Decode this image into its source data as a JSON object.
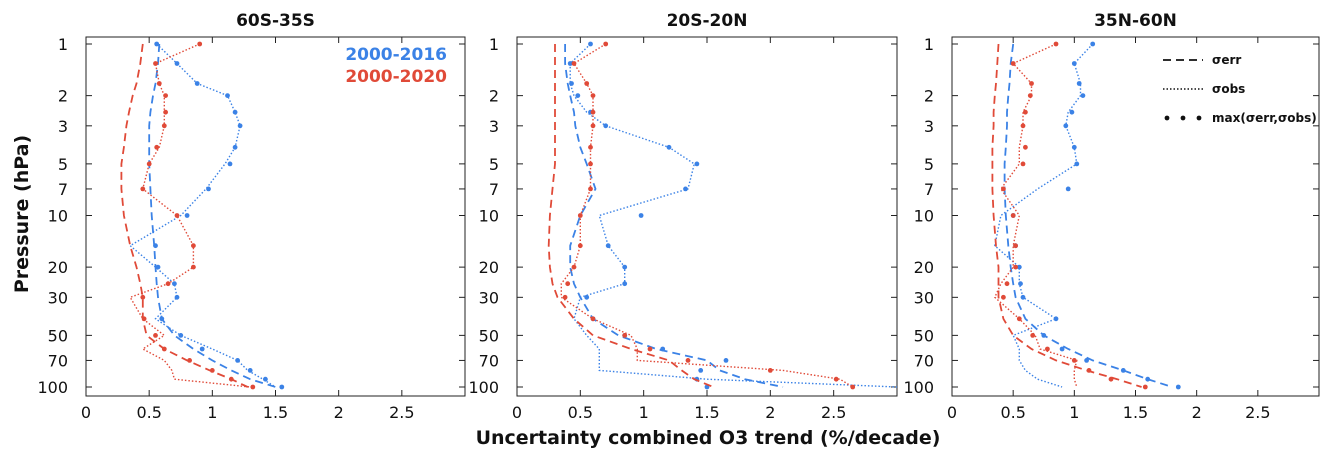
{
  "figure": {
    "xlabel": "Uncertainty combined O3 trend (%/decade)",
    "ylabel": "Pressure (hPa)",
    "legend_color": [
      {
        "label": "2000-2016",
        "color": "#3b82e6"
      },
      {
        "label": "2000-2020",
        "color": "#e04a38"
      }
    ],
    "legend_style": [
      {
        "label": "σerr",
        "style": "dashed"
      },
      {
        "label": "σobs",
        "style": "dotted"
      },
      {
        "label": "max(σerr,σobs)",
        "style": "markers"
      }
    ]
  },
  "chart_data": [
    {
      "type": "line",
      "title": "60S-35S",
      "xscale": "linear",
      "yscale": "log",
      "y_reversed": true,
      "xlim": [
        0,
        3
      ],
      "ylim": [
        100,
        1
      ],
      "xticks": [
        "0",
        "0.5",
        "1",
        "1.5",
        "2",
        "2.5"
      ],
      "yticks": [
        "1",
        "2",
        "3",
        "5",
        "7",
        "10",
        "20",
        "30",
        "50",
        "70",
        "100"
      ],
      "pressure": [
        1,
        1.3,
        1.7,
        2,
        2.5,
        3,
        4,
        5,
        7,
        10,
        15,
        20,
        25,
        30,
        40,
        50,
        60,
        70,
        80,
        90,
        100
      ],
      "series": [
        {
          "period": "2000-2016",
          "kind": "err",
          "color": "#3b82e6",
          "x": [
            0.58,
            0.57,
            0.55,
            0.53,
            0.51,
            0.5,
            0.5,
            0.5,
            0.51,
            0.52,
            0.54,
            0.55,
            0.56,
            0.57,
            0.6,
            0.7,
            0.85,
            1.0,
            1.15,
            1.3,
            1.5
          ]
        },
        {
          "period": "2000-2016",
          "kind": "obs",
          "color": "#3b82e6",
          "x": [
            0.56,
            0.72,
            0.88,
            1.12,
            1.18,
            1.22,
            1.18,
            1.1,
            0.95,
            0.75,
            0.35,
            0.55,
            0.7,
            0.72,
            0.55,
            0.75,
            1.0,
            1.2,
            1.28,
            1.4,
            1.5
          ]
        },
        {
          "period": "2000-2016",
          "kind": "max",
          "color": "#3b82e6",
          "x": [
            0.56,
            0.72,
            0.88,
            1.12,
            1.18,
            1.22,
            1.18,
            1.14,
            0.97,
            0.8,
            0.55,
            0.57,
            0.7,
            0.72,
            0.6,
            0.75,
            0.92,
            1.2,
            1.3,
            1.42,
            1.55
          ]
        },
        {
          "period": "2000-2020",
          "kind": "err",
          "color": "#e04a38",
          "x": [
            0.45,
            0.43,
            0.4,
            0.37,
            0.34,
            0.32,
            0.3,
            0.28,
            0.28,
            0.3,
            0.35,
            0.4,
            0.43,
            0.45,
            0.45,
            0.48,
            0.62,
            0.8,
            0.98,
            1.15,
            1.28
          ]
        },
        {
          "period": "2000-2020",
          "kind": "obs",
          "color": "#e04a38",
          "x": [
            0.9,
            0.55,
            0.58,
            0.62,
            0.62,
            0.62,
            0.58,
            0.5,
            0.45,
            0.72,
            0.85,
            0.85,
            0.65,
            0.35,
            0.45,
            0.62,
            0.45,
            0.62,
            0.68,
            0.7,
            1.3
          ]
        },
        {
          "period": "2000-2020",
          "kind": "max",
          "color": "#e04a38",
          "x": [
            0.9,
            0.55,
            0.58,
            0.63,
            0.63,
            0.62,
            0.56,
            0.5,
            0.45,
            0.72,
            0.85,
            0.85,
            0.65,
            0.45,
            0.46,
            0.55,
            0.62,
            0.82,
            1.0,
            1.15,
            1.32
          ]
        }
      ]
    },
    {
      "type": "line",
      "title": "20S-20N",
      "xscale": "linear",
      "yscale": "log",
      "y_reversed": true,
      "xlim": [
        0,
        3
      ],
      "ylim": [
        100,
        1
      ],
      "xticks": [
        "0",
        "0.5",
        "1",
        "1.5",
        "2",
        "2.5"
      ],
      "yticks": [
        "1",
        "2",
        "3",
        "5",
        "7",
        "10",
        "20",
        "30",
        "50",
        "70",
        "100"
      ],
      "pressure": [
        1,
        1.3,
        1.7,
        2,
        2.5,
        3,
        4,
        5,
        7,
        10,
        15,
        20,
        25,
        30,
        40,
        50,
        60,
        70,
        80,
        90,
        100
      ],
      "series": [
        {
          "period": "2000-2016",
          "kind": "err",
          "color": "#3b82e6",
          "x": [
            0.38,
            0.38,
            0.4,
            0.42,
            0.45,
            0.46,
            0.5,
            0.55,
            0.62,
            0.5,
            0.42,
            0.42,
            0.45,
            0.5,
            0.6,
            0.8,
            1.1,
            1.5,
            1.6,
            1.8,
            2.1
          ]
        },
        {
          "period": "2000-2016",
          "kind": "obs",
          "color": "#3b82e6",
          "x": [
            0.58,
            0.42,
            0.42,
            0.45,
            0.55,
            0.7,
            1.2,
            1.4,
            1.35,
            0.65,
            0.72,
            0.85,
            0.85,
            0.5,
            0.45,
            0.55,
            0.65,
            0.65,
            0.65,
            1.5,
            3.0
          ]
        },
        {
          "period": "2000-2016",
          "kind": "max",
          "color": "#3b82e6",
          "x": [
            0.58,
            0.42,
            0.43,
            0.48,
            0.58,
            0.7,
            1.2,
            1.42,
            1.33,
            0.98,
            0.72,
            0.85,
            0.85,
            0.55,
            0.6,
            0.85,
            1.15,
            1.65,
            1.45,
            1.42,
            1.5
          ]
        },
        {
          "period": "2000-2020",
          "kind": "err",
          "color": "#e04a38",
          "x": [
            0.3,
            0.3,
            0.3,
            0.3,
            0.3,
            0.3,
            0.3,
            0.3,
            0.28,
            0.26,
            0.25,
            0.26,
            0.28,
            0.32,
            0.45,
            0.6,
            0.9,
            1.2,
            1.3,
            1.4,
            1.55
          ]
        },
        {
          "period": "2000-2020",
          "kind": "obs",
          "color": "#e04a38",
          "x": [
            0.7,
            0.45,
            0.55,
            0.6,
            0.6,
            0.6,
            0.58,
            0.58,
            0.58,
            0.5,
            0.5,
            0.45,
            0.35,
            0.35,
            0.6,
            0.9,
            0.95,
            0.95,
            2.1,
            2.55,
            2.65
          ]
        },
        {
          "period": "2000-2020",
          "kind": "max",
          "color": "#e04a38",
          "x": [
            0.7,
            0.45,
            0.55,
            0.6,
            0.6,
            0.6,
            0.58,
            0.58,
            0.58,
            0.5,
            0.5,
            0.45,
            0.4,
            0.38,
            0.6,
            0.85,
            1.05,
            1.35,
            2.0,
            2.52,
            2.65
          ]
        }
      ]
    },
    {
      "type": "line",
      "title": "35N-60N",
      "xscale": "linear",
      "yscale": "log",
      "y_reversed": true,
      "xlim": [
        0,
        3
      ],
      "ylim": [
        100,
        1
      ],
      "xticks": [
        "0",
        "0.5",
        "1",
        "1.5",
        "2",
        "2.5"
      ],
      "yticks": [
        "1",
        "2",
        "3",
        "5",
        "7",
        "10",
        "20",
        "30",
        "50",
        "70",
        "100"
      ],
      "pressure": [
        1,
        1.3,
        1.7,
        2,
        2.5,
        3,
        4,
        5,
        7,
        10,
        15,
        20,
        25,
        30,
        40,
        50,
        60,
        70,
        80,
        90,
        100
      ],
      "series": [
        {
          "period": "2000-2016",
          "kind": "err",
          "color": "#3b82e6",
          "x": [
            0.5,
            0.48,
            0.47,
            0.46,
            0.45,
            0.45,
            0.44,
            0.43,
            0.43,
            0.44,
            0.46,
            0.48,
            0.5,
            0.52,
            0.6,
            0.75,
            0.95,
            1.15,
            1.4,
            1.6,
            1.8
          ]
        },
        {
          "period": "2000-2016",
          "kind": "obs",
          "color": "#3b82e6",
          "x": [
            1.15,
            1.0,
            1.05,
            1.05,
            0.95,
            0.93,
            1.0,
            1.02,
            0.7,
            0.4,
            0.35,
            0.55,
            0.55,
            0.58,
            0.85,
            0.5,
            0.55,
            0.55,
            0.6,
            0.7,
            0.9
          ]
        },
        {
          "period": "2000-2016",
          "kind": "max",
          "color": "#3b82e6",
          "x": [
            1.15,
            1.0,
            1.04,
            1.07,
            0.98,
            0.93,
            1.0,
            1.02,
            0.95,
            0.5,
            0.52,
            0.55,
            0.56,
            0.58,
            0.85,
            0.75,
            0.9,
            1.1,
            1.4,
            1.6,
            1.85
          ]
        },
        {
          "period": "2000-2020",
          "kind": "err",
          "color": "#e04a38",
          "x": [
            0.38,
            0.37,
            0.36,
            0.35,
            0.34,
            0.34,
            0.33,
            0.33,
            0.33,
            0.34,
            0.36,
            0.38,
            0.38,
            0.38,
            0.42,
            0.5,
            0.65,
            0.85,
            1.1,
            1.35,
            1.55
          ]
        },
        {
          "period": "2000-2020",
          "kind": "obs",
          "color": "#e04a38",
          "x": [
            0.85,
            0.5,
            0.65,
            0.65,
            0.58,
            0.58,
            0.55,
            0.55,
            0.4,
            0.55,
            0.5,
            0.5,
            0.4,
            0.35,
            0.55,
            0.68,
            0.72,
            1.02,
            1.0,
            1.0,
            1.02
          ]
        },
        {
          "period": "2000-2020",
          "kind": "max",
          "color": "#e04a38",
          "x": [
            0.85,
            0.5,
            0.65,
            0.64,
            0.6,
            0.58,
            0.6,
            0.58,
            0.42,
            0.5,
            0.52,
            0.52,
            0.45,
            0.42,
            0.55,
            0.66,
            0.78,
            1.0,
            1.12,
            1.3,
            1.58
          ]
        }
      ]
    }
  ]
}
